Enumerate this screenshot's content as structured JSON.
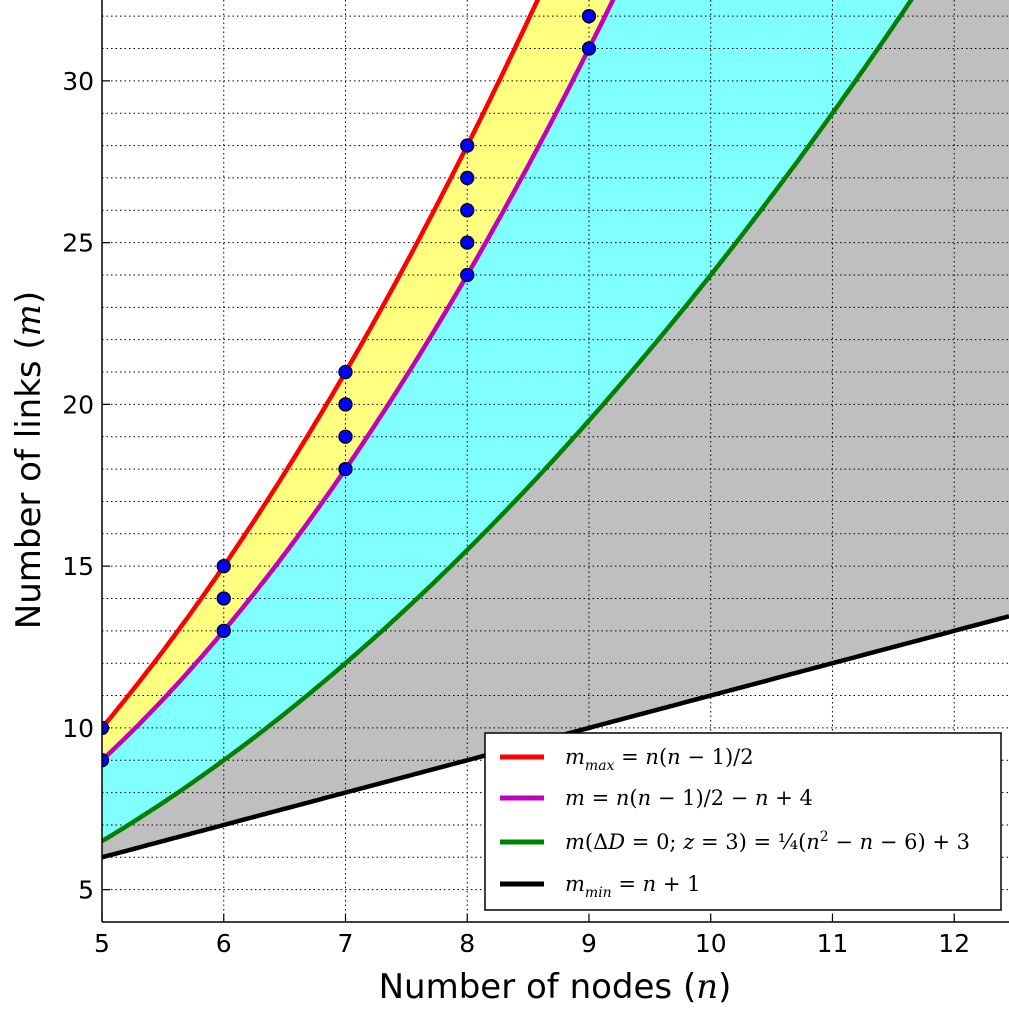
{
  "chart_data": {
    "type": "line",
    "xlabel_text": "Number of nodes (",
    "xlabel_var": "n",
    "xlabel_close": ")",
    "ylabel_text": "Number of links (",
    "ylabel_var": "m",
    "ylabel_close": ")",
    "xlim": [
      5,
      12.45
    ],
    "ylim": [
      4,
      32.5
    ],
    "xticks": [
      5,
      6,
      7,
      8,
      9,
      10,
      11,
      12
    ],
    "yticks": [
      5,
      10,
      15,
      20,
      25,
      30
    ],
    "grid": true,
    "legend_position": "lower-right",
    "series": [
      {
        "name": "m_max = n(n−1)/2",
        "color": "#ff0000",
        "formula": "n*(n-1)/2"
      },
      {
        "name": "m = n(n−1)/2 − n + 4",
        "color": "#bf00bf",
        "formula": "n*(n-1)/2 - n + 4"
      },
      {
        "name": "m(ΔD=0; z=3) = ¼(n² − n − 6) + 3",
        "color": "#008000",
        "formula": "(n*n - n - 6)/4 + 3"
      },
      {
        "name": "m_min = n + 1",
        "color": "#000000",
        "formula": "n + 1"
      }
    ],
    "fill_regions": [
      {
        "between": [
          "m_max",
          "m"
        ],
        "color": "#ffff80"
      },
      {
        "between": [
          "m",
          "m(ΔD=0; z=3)"
        ],
        "color": "#80ffff"
      },
      {
        "between": [
          "m(ΔD=0; z=3)",
          "m_min"
        ],
        "color": "#bfbfbf"
      }
    ],
    "points": {
      "color": "#0000ff",
      "x": [
        5,
        5,
        6,
        6,
        6,
        7,
        7,
        7,
        7,
        8,
        8,
        8,
        8,
        8,
        9,
        9
      ],
      "y": [
        9,
        10,
        13,
        14,
        15,
        18,
        19,
        20,
        21,
        24,
        25,
        26,
        27,
        28,
        31,
        32
      ]
    }
  }
}
